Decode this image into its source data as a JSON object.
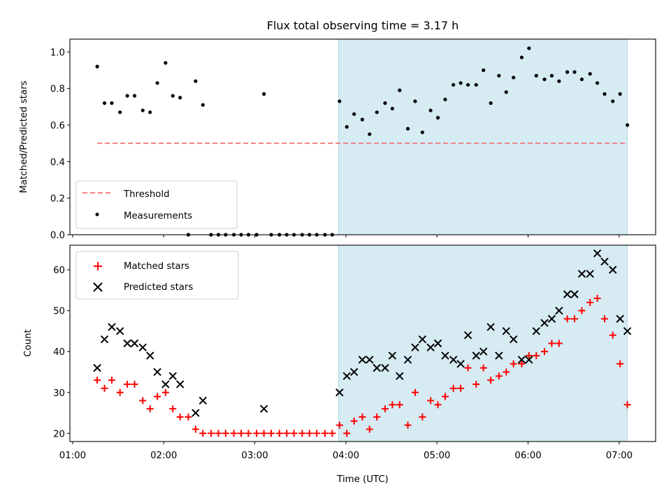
{
  "chart_data": {
    "title": "Flux total observing time = 3.17 h",
    "xlabel": "Time (UTC)",
    "x_ticks": [
      "01:00",
      "02:00",
      "03:00",
      "04:00",
      "05:00",
      "06:00",
      "07:00"
    ],
    "x_range_hours": [
      0.97,
      7.4
    ],
    "observing_window_hours": [
      3.92,
      7.09
    ],
    "shade_color": "#add8e6",
    "panels": [
      {
        "type": "scatter",
        "ylabel": "Matched/Predicted stars",
        "ylim": [
          0,
          1.07
        ],
        "yticks": [
          "0.0",
          "0.2",
          "0.4",
          "0.6",
          "0.8",
          "1.0"
        ],
        "legend_position": "lower-left",
        "threshold": {
          "name": "Threshold",
          "value": 0.5,
          "x_from": 1.27,
          "x_to": 7.09,
          "color": "#f08080"
        },
        "series": [
          {
            "name": "Measurements",
            "color": "#000000",
            "marker": "dot",
            "points": [
              [
                1.27,
                0.92
              ],
              [
                1.35,
                0.72
              ],
              [
                1.43,
                0.72
              ],
              [
                1.52,
                0.67
              ],
              [
                1.6,
                0.76
              ],
              [
                1.68,
                0.76
              ],
              [
                1.77,
                0.68
              ],
              [
                1.85,
                0.67
              ],
              [
                1.93,
                0.83
              ],
              [
                2.02,
                0.94
              ],
              [
                2.1,
                0.76
              ],
              [
                2.18,
                0.75
              ],
              [
                2.27,
                0.0
              ],
              [
                2.35,
                0.84
              ],
              [
                2.43,
                0.71
              ],
              [
                2.52,
                0.0
              ],
              [
                2.6,
                0.0
              ],
              [
                2.68,
                0.0
              ],
              [
                2.77,
                0.0
              ],
              [
                2.85,
                0.0
              ],
              [
                2.93,
                0.0
              ],
              [
                3.02,
                0.0
              ],
              [
                3.1,
                0.77
              ],
              [
                3.18,
                0.0
              ],
              [
                3.27,
                0.0
              ],
              [
                3.35,
                0.0
              ],
              [
                3.43,
                0.0
              ],
              [
                3.52,
                0.0
              ],
              [
                3.6,
                0.0
              ],
              [
                3.68,
                0.0
              ],
              [
                3.77,
                0.0
              ],
              [
                3.85,
                0.0
              ],
              [
                3.93,
                0.73
              ],
              [
                4.01,
                0.59
              ],
              [
                4.09,
                0.66
              ],
              [
                4.18,
                0.63
              ],
              [
                4.26,
                0.55
              ],
              [
                4.34,
                0.67
              ],
              [
                4.43,
                0.72
              ],
              [
                4.51,
                0.69
              ],
              [
                4.59,
                0.79
              ],
              [
                4.68,
                0.58
              ],
              [
                4.76,
                0.73
              ],
              [
                4.84,
                0.56
              ],
              [
                4.93,
                0.68
              ],
              [
                5.01,
                0.64
              ],
              [
                5.09,
                0.74
              ],
              [
                5.18,
                0.82
              ],
              [
                5.26,
                0.83
              ],
              [
                5.34,
                0.82
              ],
              [
                5.43,
                0.82
              ],
              [
                5.51,
                0.9
              ],
              [
                5.59,
                0.72
              ],
              [
                5.68,
                0.87
              ],
              [
                5.76,
                0.78
              ],
              [
                5.84,
                0.86
              ],
              [
                5.93,
                0.97
              ],
              [
                6.01,
                1.02
              ],
              [
                6.09,
                0.87
              ],
              [
                6.18,
                0.85
              ],
              [
                6.26,
                0.87
              ],
              [
                6.34,
                0.84
              ],
              [
                6.43,
                0.89
              ],
              [
                6.51,
                0.89
              ],
              [
                6.59,
                0.85
              ],
              [
                6.68,
                0.88
              ],
              [
                6.76,
                0.83
              ],
              [
                6.84,
                0.77
              ],
              [
                6.93,
                0.73
              ],
              [
                7.01,
                0.77
              ],
              [
                7.09,
                0.6
              ]
            ]
          }
        ]
      },
      {
        "type": "scatter",
        "ylabel": "Count",
        "ylim": [
          18,
          66
        ],
        "yticks": [
          "20",
          "30",
          "40",
          "50",
          "60"
        ],
        "legend_position": "upper-left",
        "series": [
          {
            "name": "Matched stars",
            "color": "#ff0000",
            "marker": "plus",
            "points": [
              [
                1.27,
                33
              ],
              [
                1.35,
                31
              ],
              [
                1.43,
                33
              ],
              [
                1.52,
                30
              ],
              [
                1.6,
                32
              ],
              [
                1.68,
                32
              ],
              [
                1.77,
                28
              ],
              [
                1.85,
                26
              ],
              [
                1.93,
                29
              ],
              [
                2.02,
                30
              ],
              [
                2.1,
                26
              ],
              [
                2.18,
                24
              ],
              [
                2.27,
                24
              ],
              [
                2.35,
                21
              ],
              [
                2.43,
                20
              ],
              [
                2.52,
                20
              ],
              [
                2.6,
                20
              ],
              [
                2.68,
                20
              ],
              [
                2.77,
                20
              ],
              [
                2.85,
                20
              ],
              [
                2.93,
                20
              ],
              [
                3.02,
                20
              ],
              [
                3.1,
                20
              ],
              [
                3.18,
                20
              ],
              [
                3.27,
                20
              ],
              [
                3.35,
                20
              ],
              [
                3.43,
                20
              ],
              [
                3.52,
                20
              ],
              [
                3.6,
                20
              ],
              [
                3.68,
                20
              ],
              [
                3.77,
                20
              ],
              [
                3.85,
                20
              ],
              [
                3.93,
                22
              ],
              [
                4.01,
                20
              ],
              [
                4.09,
                23
              ],
              [
                4.18,
                24
              ],
              [
                4.26,
                21
              ],
              [
                4.34,
                24
              ],
              [
                4.43,
                26
              ],
              [
                4.51,
                27
              ],
              [
                4.59,
                27
              ],
              [
                4.68,
                22
              ],
              [
                4.76,
                30
              ],
              [
                4.84,
                24
              ],
              [
                4.93,
                28
              ],
              [
                5.01,
                27
              ],
              [
                5.09,
                29
              ],
              [
                5.18,
                31
              ],
              [
                5.26,
                31
              ],
              [
                5.34,
                36
              ],
              [
                5.43,
                32
              ],
              [
                5.51,
                36
              ],
              [
                5.59,
                33
              ],
              [
                5.68,
                34
              ],
              [
                5.76,
                35
              ],
              [
                5.84,
                37
              ],
              [
                5.93,
                37
              ],
              [
                6.01,
                39
              ],
              [
                6.09,
                39
              ],
              [
                6.18,
                40
              ],
              [
                6.26,
                42
              ],
              [
                6.34,
                42
              ],
              [
                6.43,
                48
              ],
              [
                6.51,
                48
              ],
              [
                6.59,
                50
              ],
              [
                6.68,
                52
              ],
              [
                6.76,
                53
              ],
              [
                6.84,
                48
              ],
              [
                6.93,
                44
              ],
              [
                7.01,
                37
              ],
              [
                7.09,
                27
              ]
            ]
          },
          {
            "name": "Predicted stars",
            "color": "#000000",
            "marker": "x",
            "points": [
              [
                1.27,
                36
              ],
              [
                1.35,
                43
              ],
              [
                1.43,
                46
              ],
              [
                1.52,
                45
              ],
              [
                1.6,
                42
              ],
              [
                1.68,
                42
              ],
              [
                1.77,
                41
              ],
              [
                1.85,
                39
              ],
              [
                1.93,
                35
              ],
              [
                2.02,
                32
              ],
              [
                2.1,
                34
              ],
              [
                2.18,
                32
              ],
              [
                2.35,
                25
              ],
              [
                2.43,
                28
              ],
              [
                3.1,
                26
              ],
              [
                3.93,
                30
              ],
              [
                4.01,
                34
              ],
              [
                4.09,
                35
              ],
              [
                4.18,
                38
              ],
              [
                4.26,
                38
              ],
              [
                4.34,
                36
              ],
              [
                4.43,
                36
              ],
              [
                4.51,
                39
              ],
              [
                4.59,
                34
              ],
              [
                4.68,
                38
              ],
              [
                4.76,
                41
              ],
              [
                4.84,
                43
              ],
              [
                4.93,
                41
              ],
              [
                5.01,
                42
              ],
              [
                5.09,
                39
              ],
              [
                5.18,
                38
              ],
              [
                5.26,
                37
              ],
              [
                5.34,
                44
              ],
              [
                5.43,
                39
              ],
              [
                5.51,
                40
              ],
              [
                5.59,
                46
              ],
              [
                5.68,
                39
              ],
              [
                5.76,
                45
              ],
              [
                5.84,
                43
              ],
              [
                5.93,
                38
              ],
              [
                6.01,
                38
              ],
              [
                6.09,
                45
              ],
              [
                6.18,
                47
              ],
              [
                6.26,
                48
              ],
              [
                6.34,
                50
              ],
              [
                6.43,
                54
              ],
              [
                6.51,
                54
              ],
              [
                6.59,
                59
              ],
              [
                6.68,
                59
              ],
              [
                6.76,
                64
              ],
              [
                6.84,
                62
              ],
              [
                6.93,
                60
              ],
              [
                7.01,
                48
              ],
              [
                7.09,
                45
              ]
            ]
          }
        ]
      }
    ]
  }
}
